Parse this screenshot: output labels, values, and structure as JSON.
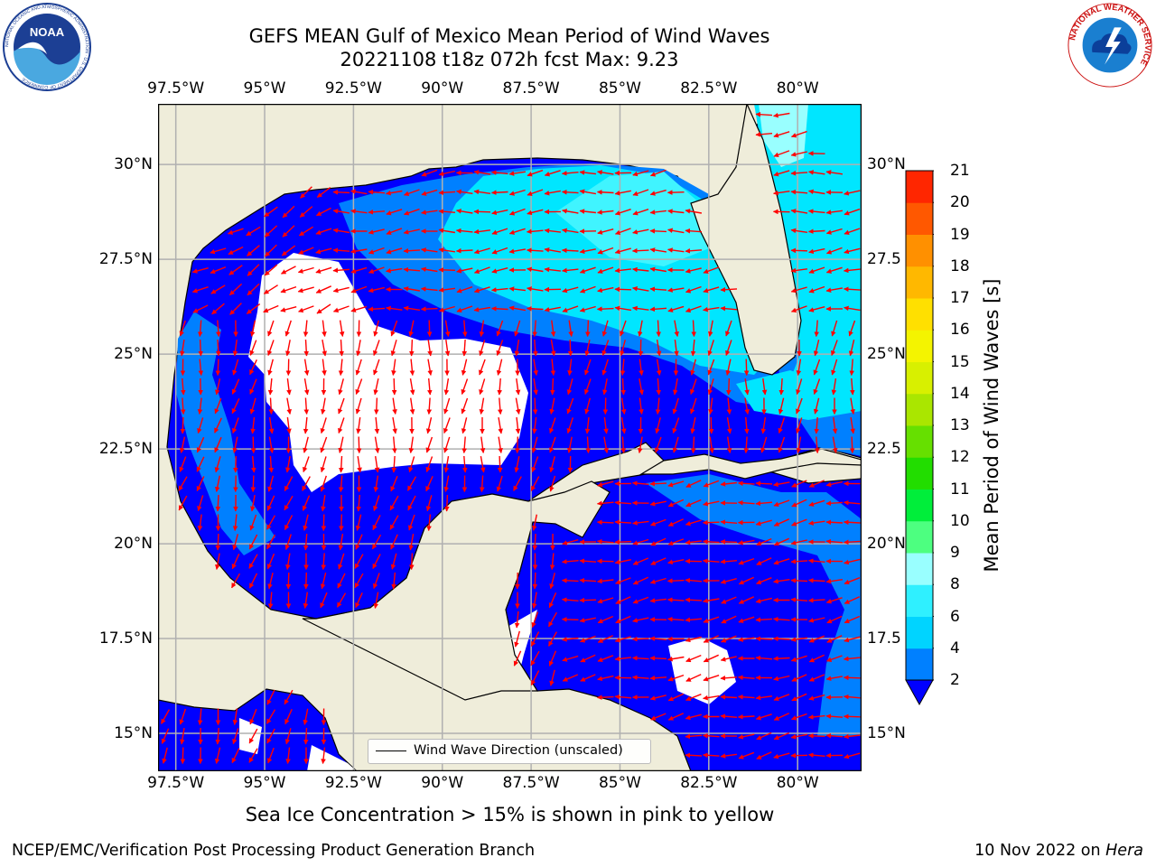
{
  "title_line1": "GEFS MEAN Gulf of Mexico Mean Period of Wind Waves",
  "title_line2": "20221108 t18z 072h fcst   Max: 9.23",
  "lon_ticks": [
    "97.5°W",
    "95°W",
    "92.5°W",
    "90°W",
    "87.5°W",
    "85°W",
    "82.5°W",
    "80°W"
  ],
  "lon_values": [
    -97.5,
    -95,
    -92.5,
    -90,
    -87.5,
    -85,
    -82.5,
    -80
  ],
  "lat_ticks_left": [
    "30°N",
    "27.5°N",
    "25°N",
    "22.5°N",
    "20°N",
    "17.5°N",
    "15°N"
  ],
  "lat_ticks_right": [
    "30°N",
    "27.5",
    "25°N",
    "22.5",
    "20°N",
    "17.5",
    "15°N"
  ],
  "lat_values": [
    30,
    27.5,
    25,
    22.5,
    20,
    17.5,
    15
  ],
  "map_extent": {
    "lon_min": -98,
    "lon_max": -78.2,
    "lat_min": 14,
    "lat_max": 31.6
  },
  "legend_label": "Wind Wave Direction (unscaled)",
  "colorbar": {
    "label": "Mean Period of Wind Waves [s]",
    "tick_labels": [
      "2",
      "4",
      "6",
      "8",
      "9",
      "10",
      "11",
      "12",
      "13",
      "14",
      "15",
      "16",
      "17",
      "18",
      "19",
      "20",
      "21"
    ],
    "levels": [
      2,
      4,
      6,
      8,
      9,
      10,
      11,
      12,
      13,
      14,
      15,
      16,
      17,
      18,
      19,
      20,
      21
    ],
    "colors": [
      "#0080ff",
      "#00d4ff",
      "#2ff0ff",
      "#99ffff",
      "#4dff80",
      "#00ee3a",
      "#22dd00",
      "#66e000",
      "#aae600",
      "#d8f000",
      "#f4f400",
      "#ffe000",
      "#ffb800",
      "#ff9000",
      "#ff5800",
      "#ff2600"
    ],
    "under_color": "#0000ff"
  },
  "caption": "Sea Ice Concentration > 15% is shown in pink to yellow",
  "footer_left": "NCEP/EMC/Verification Post Processing Product Generation Branch",
  "footer_right_prefix": "10 Nov 2022 on ",
  "footer_right_machine": "Hera",
  "logos": {
    "left": "noaa-logo",
    "right": "nws-logo"
  },
  "logo_text": {
    "noaa": "NOAA",
    "noaa_ring": "NATIONAL OCEANIC AND ATMOSPHERIC ADMINISTRATION · U.S. DEPARTMENT OF COMMERCE",
    "nws_ring": "NATIONAL WEATHER SERVICE"
  },
  "colors": {
    "land": "#efedda",
    "under": "#0000ff",
    "arrow": "#ff0000",
    "grid": "#b0b0b0",
    "calm": "#ffffff"
  }
}
